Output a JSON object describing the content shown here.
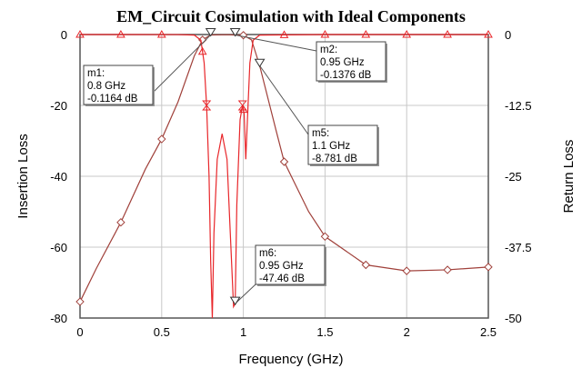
{
  "chart_data": {
    "type": "line",
    "title": "EM_Circuit Cosimulation with Ideal Components",
    "xlabel": "Frequency (GHz)",
    "ylabel": "Insertion Loss",
    "y2label": "Return Loss",
    "xlim": [
      0,
      2.5
    ],
    "ylim": [
      -80,
      0
    ],
    "y2lim": [
      -50,
      0
    ],
    "xticks": [
      "0",
      "0.5",
      "1",
      "1.5",
      "2",
      "2.5"
    ],
    "yticks": [
      "0",
      "-20",
      "-40",
      "-60",
      "-80"
    ],
    "y2ticks": [
      "0",
      "-12.5",
      "-25",
      "-37.5",
      "-50"
    ],
    "grid": true,
    "series": [
      {
        "axis": "left",
        "color": "#a0403a",
        "marker": "diamond",
        "x": [
          0,
          0.1,
          0.25,
          0.4,
          0.5,
          0.6,
          0.7,
          0.75,
          0.8,
          0.9,
          0.95,
          1.0,
          1.05,
          1.1,
          1.2,
          1.25,
          1.4,
          1.5,
          1.75,
          2.0,
          2.25,
          2.5
        ],
        "y": [
          -75.4,
          -66,
          -53,
          -38,
          -29.5,
          -19,
          -6,
          -1.5,
          -0.12,
          -0.05,
          -0.14,
          -0.2,
          -1.5,
          -8.78,
          -27,
          -35.9,
          -50,
          -57,
          -65,
          -66.7,
          -66.4,
          -65.6
        ]
      },
      {
        "axis": "right",
        "color": "#e8262a",
        "marker": "triangle",
        "x": [
          0,
          0.6,
          0.7,
          0.74,
          0.76,
          0.775,
          0.79,
          0.8,
          0.81,
          0.82,
          0.84,
          0.87,
          0.9,
          0.92,
          0.94,
          0.95,
          0.96,
          0.98,
          0.995,
          1.005,
          1.015,
          1.025,
          1.04,
          1.06,
          1.1,
          1.5,
          2.5
        ],
        "y": [
          0,
          -0.01,
          -0.1,
          -1,
          -5,
          -12.5,
          -25,
          -40,
          -50,
          -35,
          -22,
          -17.5,
          -22,
          -35,
          -48,
          -47.46,
          -30,
          -15,
          -12.5,
          -14,
          -22,
          -15,
          -5,
          -1,
          -0.1,
          0,
          0
        ]
      }
    ],
    "markers": [
      {
        "name": "m1:",
        "freq": "0.8 GHz",
        "val": "-0.1164 dB",
        "x": 0.8,
        "y": -0.1164,
        "axis": "left"
      },
      {
        "name": "m2:",
        "freq": "0.95 GHz",
        "val": "-0.1376 dB",
        "x": 0.95,
        "y": -0.1376,
        "axis": "left"
      },
      {
        "name": "m5:",
        "freq": "1.1 GHz",
        "val": "-8.781 dB",
        "x": 1.1,
        "y": -8.781,
        "axis": "left"
      },
      {
        "name": "m6:",
        "freq": "0.95 GHz",
        "val": "-47.46 dB",
        "x": 0.95,
        "y": -47.46,
        "axis": "right"
      }
    ]
  }
}
